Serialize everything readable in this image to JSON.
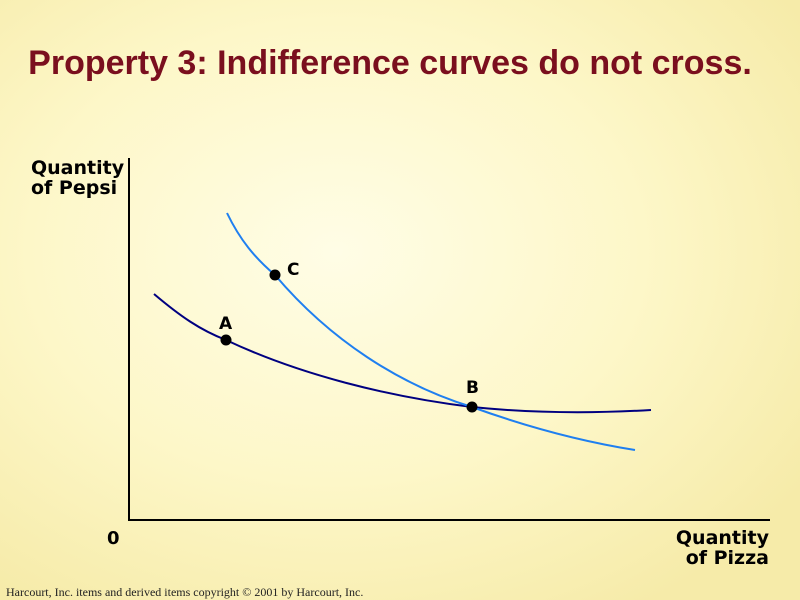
{
  "title": "Property 3: Indifference curves do not cross.",
  "axes": {
    "y_label_line1": "Quantity",
    "y_label_line2": "of Pepsi",
    "x_label_line1": "Quantity",
    "x_label_line2": "of Pizza",
    "origin": "0"
  },
  "points": {
    "A": "A",
    "B": "B",
    "C": "C"
  },
  "curves": {
    "steep_color": "#1f7ff0",
    "flat_color": "#000080"
  },
  "footer": "Harcourt, Inc. items and derived items copyright © 2001  by Harcourt, Inc."
}
